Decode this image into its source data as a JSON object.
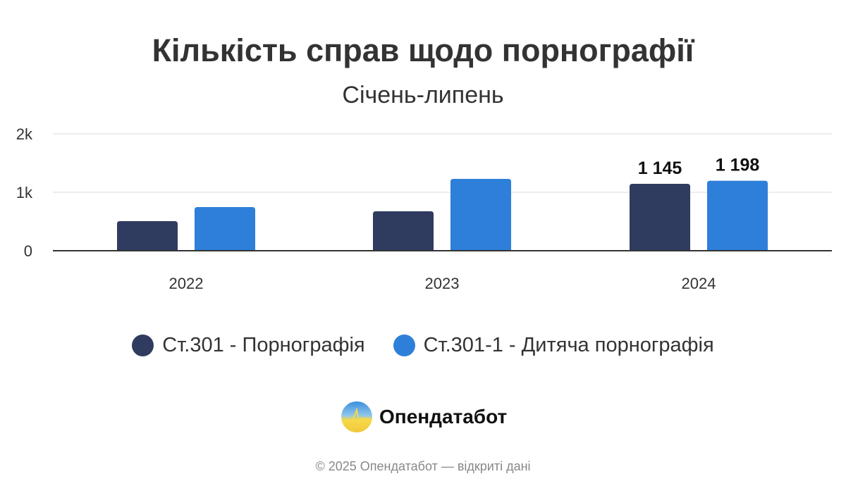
{
  "chart_data": {
    "type": "bar",
    "title": "Кількість справ щодо порнографії",
    "subtitle": "Січень-липень",
    "categories": [
      "2022",
      "2023",
      "2024"
    ],
    "series": [
      {
        "name": "Ст.301 - Порнографія",
        "color": "#2f3c5f",
        "values": [
          506,
          675,
          1145
        ],
        "labels": [
          null,
          null,
          "1 145"
        ]
      },
      {
        "name": "Ст.301-1 - Дитяча порнографія",
        "color": "#2e7fd9",
        "values": [
          747,
          1229,
          1198
        ],
        "labels": [
          null,
          null,
          "1 198"
        ]
      }
    ],
    "ylim": [
      0,
      2000
    ],
    "yticks": [
      {
        "value": 0,
        "label": "0"
      },
      {
        "value": 1000,
        "label": "1k"
      },
      {
        "value": 2000,
        "label": "2k"
      }
    ],
    "grid": true,
    "legend": "bottom",
    "xlabel": "",
    "ylabel": ""
  },
  "brand": {
    "name": "Опендатабот",
    "logo": "opendatabot-logo"
  },
  "footer": "© 2025 Опендатабот — відкриті дані"
}
